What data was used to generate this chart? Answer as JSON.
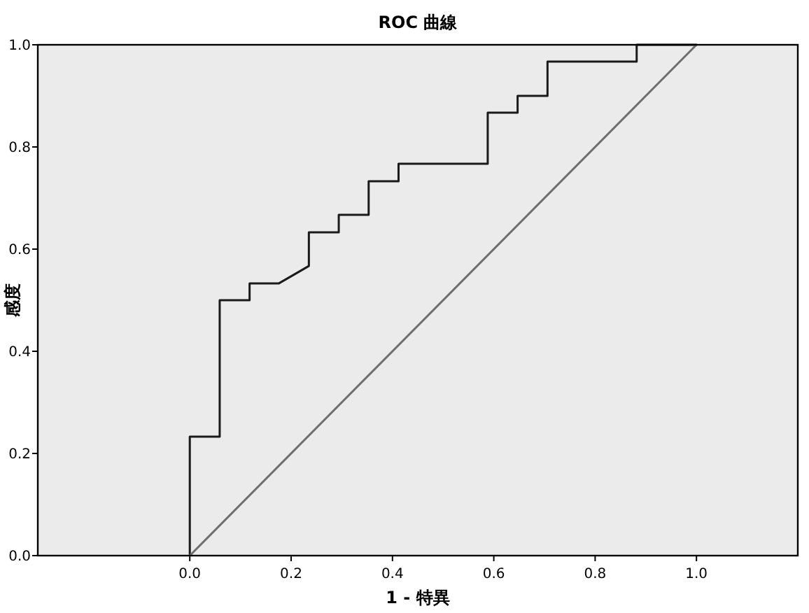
{
  "chart_data": {
    "type": "line",
    "title": "ROC 曲線",
    "xlabel": "1 - 特異",
    "ylabel": "感度",
    "xlim": [
      -0.3,
      1.2
    ],
    "ylim": [
      0,
      1
    ],
    "xticks": [
      {
        "value": 0,
        "label": "0.0"
      },
      {
        "value": 0.2,
        "label": "0.2"
      },
      {
        "value": 0.4,
        "label": "0.4"
      },
      {
        "value": 0.6,
        "label": "0.6"
      },
      {
        "value": 0.8,
        "label": "0.8"
      },
      {
        "value": 1,
        "label": "1.0"
      }
    ],
    "yticks": [
      {
        "value": 0,
        "label": "0.0"
      },
      {
        "value": 0.2,
        "label": "0.2"
      },
      {
        "value": 0.4,
        "label": "0.4"
      },
      {
        "value": 0.6,
        "label": "0.6"
      },
      {
        "value": 0.8,
        "label": "0.8"
      },
      {
        "value": 1,
        "label": "1.0"
      }
    ],
    "marker": "none",
    "series": [
      {
        "color": "#1a1a1a",
        "x": [
          0,
          0,
          0.059,
          0.059,
          0.118,
          0.118,
          0.176,
          0.235,
          0.235,
          0.294,
          0.294,
          0.353,
          0.353,
          0.412,
          0.412,
          0.588,
          0.588,
          0.647,
          0.647,
          0.706,
          0.706,
          0.882,
          0.882,
          1
        ],
        "values": [
          0,
          0.233,
          0.233,
          0.5,
          0.5,
          0.533,
          0.533,
          0.567,
          0.633,
          0.633,
          0.667,
          0.667,
          0.733,
          0.733,
          0.767,
          0.767,
          0.867,
          0.867,
          0.9,
          0.9,
          0.967,
          0.967,
          1,
          1
        ]
      },
      {
        "color": "#6e6e6e",
        "x": [
          0,
          1
        ],
        "values": [
          0,
          1
        ]
      }
    ]
  }
}
